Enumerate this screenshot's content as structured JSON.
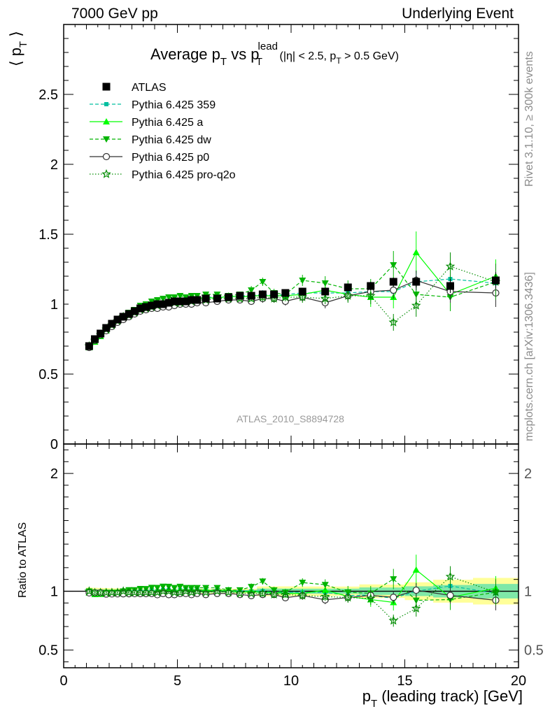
{
  "header": {
    "left": "7000 GeV pp",
    "right": "Underlying Event"
  },
  "side_labels": {
    "rivet": "Rivet 3.1.10, ≥ 300k events",
    "mcplots": "mcplots.cern.ch [arXiv:1306.3436]"
  },
  "chart_data": [
    {
      "type": "scatter",
      "panel": "main",
      "title": {
        "main_a": "Average p",
        "main_a_sub": "T",
        "main_b": " vs p",
        "main_b_sup": "lead",
        "main_b_sub": "T",
        "cut_a": " (|η| < 2.5, p",
        "cut_a_sub": "T",
        "cut_b": " > 0.5 GeV)"
      },
      "ylabel": {
        "pre": "⟨ p",
        "sub": "T",
        "post": " ⟩"
      },
      "analysis_label": "ATLAS_2010_S8894728",
      "xlim": [
        0,
        20
      ],
      "ylim": [
        0,
        3.0
      ],
      "y_ticks": [
        {
          "v": 0.5,
          "label": "0.5"
        },
        {
          "v": 1,
          "label": "1"
        },
        {
          "v": 1.5,
          "label": "1.5"
        },
        {
          "v": 2,
          "label": "2"
        },
        {
          "v": 2.5,
          "label": "2.5"
        },
        {
          "v": 0,
          "label": "0"
        }
      ],
      "x": [
        1.12,
        1.37,
        1.62,
        1.87,
        2.12,
        2.37,
        2.62,
        2.87,
        3.12,
        3.37,
        3.62,
        3.87,
        4.12,
        4.37,
        4.62,
        4.87,
        5.12,
        5.37,
        5.62,
        5.87,
        6.25,
        6.75,
        7.25,
        7.75,
        8.25,
        8.75,
        9.25,
        9.75,
        10.5,
        11.5,
        12.5,
        13.5,
        14.5,
        15.5,
        17,
        19
      ],
      "series": [
        {
          "name": "ATLAS",
          "color": "#000000",
          "marker": "square",
          "line": "none",
          "y": [
            0.7,
            0.75,
            0.79,
            0.83,
            0.86,
            0.89,
            0.91,
            0.93,
            0.95,
            0.97,
            0.98,
            0.99,
            1.0,
            1.0,
            1.01,
            1.02,
            1.02,
            1.02,
            1.03,
            1.03,
            1.04,
            1.04,
            1.05,
            1.06,
            1.06,
            1.07,
            1.07,
            1.08,
            1.09,
            1.09,
            1.12,
            1.13,
            1.16,
            1.16,
            1.13,
            1.17
          ],
          "err": [
            0.01,
            0.01,
            0.01,
            0.01,
            0.01,
            0.01,
            0.01,
            0.01,
            0.01,
            0.01,
            0.01,
            0.01,
            0.01,
            0.01,
            0.01,
            0.01,
            0.01,
            0.01,
            0.01,
            0.01,
            0.01,
            0.01,
            0.01,
            0.01,
            0.01,
            0.02,
            0.02,
            0.02,
            0.02,
            0.02,
            0.02,
            0.03,
            0.03,
            0.04,
            0.05,
            0.06
          ]
        },
        {
          "name": "Pythia 6.425 359",
          "color": "#00bfa0",
          "marker": "smallsquare",
          "line": "dashed",
          "y": [
            0.69,
            0.74,
            0.78,
            0.82,
            0.85,
            0.88,
            0.9,
            0.93,
            0.95,
            0.97,
            0.98,
            1.0,
            1.0,
            1.01,
            1.02,
            1.02,
            1.03,
            1.04,
            1.04,
            1.04,
            1.05,
            1.05,
            1.05,
            1.06,
            1.06,
            1.07,
            1.06,
            1.07,
            1.08,
            1.08,
            1.08,
            1.09,
            1.09,
            1.16,
            1.18,
            1.15
          ],
          "err": [
            0.01,
            0.01,
            0.01,
            0.01,
            0.01,
            0.01,
            0.01,
            0.01,
            0.01,
            0.01,
            0.01,
            0.01,
            0.01,
            0.01,
            0.01,
            0.01,
            0.01,
            0.01,
            0.01,
            0.01,
            0.01,
            0.02,
            0.02,
            0.02,
            0.02,
            0.03,
            0.03,
            0.03,
            0.03,
            0.04,
            0.04,
            0.05,
            0.06,
            0.08,
            0.08,
            0.1
          ]
        },
        {
          "name": "Pythia 6.425 a",
          "color": "#00ff00",
          "marker": "triangle-up",
          "line": "solid",
          "y": [
            0.69,
            0.73,
            0.77,
            0.81,
            0.85,
            0.88,
            0.9,
            0.92,
            0.94,
            0.96,
            0.98,
            0.99,
            1.0,
            1.01,
            1.02,
            1.02,
            1.03,
            1.03,
            1.04,
            1.04,
            1.05,
            1.04,
            1.06,
            1.05,
            1.06,
            1.06,
            1.06,
            1.06,
            1.07,
            1.1,
            1.07,
            1.05,
            1.05,
            1.37,
            1.07,
            1.2
          ],
          "err": [
            0.01,
            0.01,
            0.01,
            0.01,
            0.01,
            0.01,
            0.01,
            0.01,
            0.01,
            0.01,
            0.01,
            0.01,
            0.01,
            0.01,
            0.01,
            0.01,
            0.01,
            0.01,
            0.01,
            0.01,
            0.01,
            0.02,
            0.02,
            0.02,
            0.03,
            0.03,
            0.03,
            0.03,
            0.04,
            0.05,
            0.05,
            0.07,
            0.08,
            0.15,
            0.08,
            0.12
          ]
        },
        {
          "name": "Pythia 6.425 dw",
          "color": "#00b400",
          "marker": "triangle-down",
          "line": "dashed",
          "y": [
            0.7,
            0.74,
            0.78,
            0.82,
            0.85,
            0.88,
            0.91,
            0.94,
            0.96,
            0.99,
            1.0,
            1.02,
            1.03,
            1.04,
            1.05,
            1.05,
            1.06,
            1.05,
            1.06,
            1.06,
            1.07,
            1.07,
            1.06,
            1.07,
            1.1,
            1.16,
            1.08,
            1.07,
            1.17,
            1.15,
            1.11,
            1.11,
            1.28,
            1.07,
            1.05,
            1.16
          ],
          "err": [
            0.01,
            0.01,
            0.01,
            0.01,
            0.01,
            0.01,
            0.01,
            0.01,
            0.01,
            0.01,
            0.01,
            0.01,
            0.01,
            0.01,
            0.01,
            0.01,
            0.01,
            0.01,
            0.01,
            0.01,
            0.01,
            0.02,
            0.02,
            0.02,
            0.03,
            0.03,
            0.03,
            0.03,
            0.04,
            0.05,
            0.06,
            0.07,
            0.1,
            0.08,
            0.1,
            0.13
          ]
        },
        {
          "name": "Pythia 6.425 p0",
          "color": "#333333",
          "marker": "circle-open",
          "line": "solid",
          "y": [
            0.69,
            0.74,
            0.78,
            0.81,
            0.84,
            0.87,
            0.89,
            0.91,
            0.93,
            0.95,
            0.96,
            0.97,
            0.97,
            0.98,
            0.98,
            0.99,
            1.0,
            1.0,
            1.0,
            1.01,
            1.01,
            1.02,
            1.03,
            1.03,
            1.02,
            1.04,
            1.04,
            1.02,
            1.05,
            1.01,
            1.06,
            1.09,
            1.1,
            1.17,
            1.09,
            1.08
          ],
          "err": [
            0.01,
            0.01,
            0.01,
            0.01,
            0.01,
            0.01,
            0.01,
            0.01,
            0.01,
            0.01,
            0.01,
            0.01,
            0.01,
            0.01,
            0.01,
            0.01,
            0.01,
            0.01,
            0.01,
            0.01,
            0.01,
            0.02,
            0.02,
            0.02,
            0.02,
            0.03,
            0.03,
            0.03,
            0.03,
            0.04,
            0.04,
            0.05,
            0.06,
            0.07,
            0.08,
            0.1
          ]
        },
        {
          "name": "Pythia 6.425 pro-q2o",
          "color": "#008c00",
          "marker": "star-open",
          "line": "dotted",
          "y": [
            0.7,
            0.74,
            0.78,
            0.82,
            0.85,
            0.88,
            0.91,
            0.92,
            0.94,
            0.96,
            0.97,
            0.98,
            0.99,
            1.0,
            1.01,
            1.01,
            1.01,
            1.02,
            1.02,
            1.03,
            1.03,
            1.04,
            1.04,
            1.04,
            1.04,
            1.05,
            1.04,
            1.05,
            1.05,
            1.04,
            1.06,
            1.06,
            0.87,
            0.99,
            1.27,
            1.16
          ],
          "err": [
            0.01,
            0.01,
            0.01,
            0.01,
            0.01,
            0.01,
            0.01,
            0.01,
            0.01,
            0.01,
            0.01,
            0.01,
            0.01,
            0.01,
            0.01,
            0.01,
            0.01,
            0.01,
            0.01,
            0.01,
            0.01,
            0.02,
            0.02,
            0.02,
            0.02,
            0.03,
            0.03,
            0.03,
            0.04,
            0.04,
            0.05,
            0.06,
            0.06,
            0.08,
            0.1,
            0.13
          ]
        }
      ],
      "legend": "top-left"
    },
    {
      "type": "scatter",
      "panel": "ratio",
      "ylabel": "Ratio to ATLAS",
      "xlabel": {
        "pre": "p",
        "sub": "T",
        "post": " (leading track) [GeV]"
      },
      "xlim": [
        0,
        20
      ],
      "ylim": [
        0.35,
        2.25
      ],
      "x_ticks": [
        {
          "v": 0,
          "label": "0"
        },
        {
          "v": 5,
          "label": "5"
        },
        {
          "v": 10,
          "label": "10"
        },
        {
          "v": 15,
          "label": "15"
        },
        {
          "v": 20,
          "label": "20"
        }
      ],
      "y_ticks": [
        {
          "v": 0.5,
          "label": "0.5"
        },
        {
          "v": 1,
          "label": "1"
        },
        {
          "v": 2,
          "label": "2"
        }
      ],
      "reference": 1.0,
      "band_inner_color": "#7fe8a8",
      "band_outer_color": "#ffff99"
    }
  ]
}
